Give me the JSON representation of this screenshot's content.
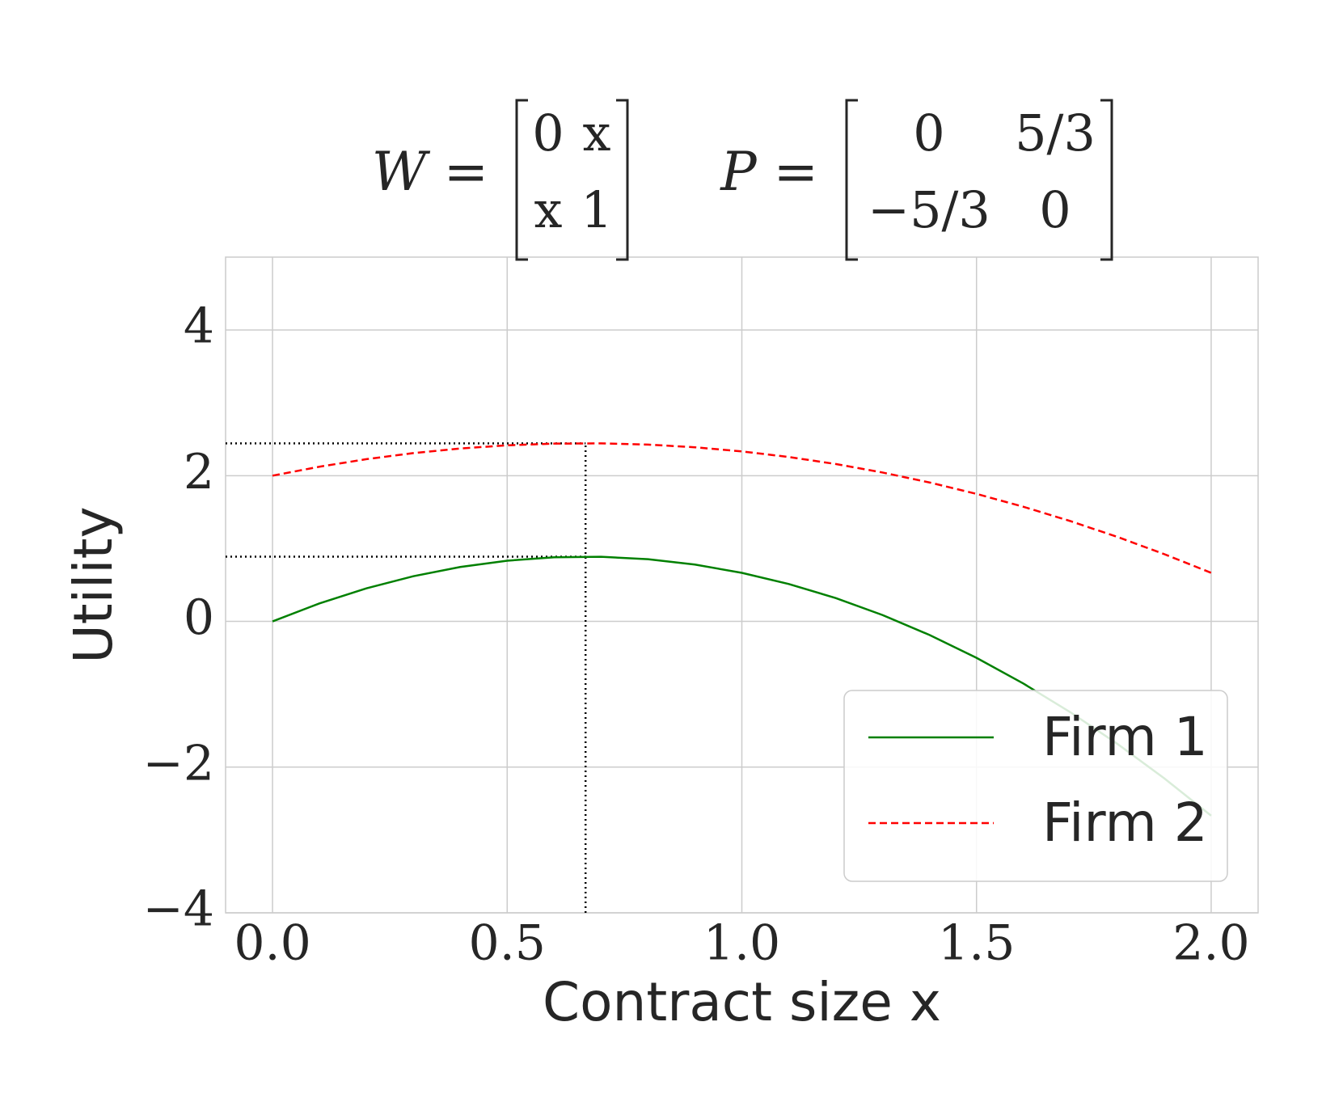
{
  "chart_data": {
    "type": "line",
    "title_parts": [
      {
        "label": "W =",
        "matrix": [
          [
            "0",
            "x"
          ],
          [
            "x",
            "1"
          ]
        ]
      },
      {
        "label": "P =",
        "matrix": [
          [
            "0",
            "5/3"
          ],
          [
            "−5/3",
            "0"
          ]
        ]
      }
    ],
    "xlabel": "Contract size x",
    "ylabel": "Utility",
    "x": [
      0,
      0.1,
      0.2,
      0.3,
      0.4,
      0.5,
      0.6,
      0.7,
      0.8,
      0.9,
      1.0,
      1.1,
      1.2,
      1.3,
      1.4,
      1.5,
      1.6,
      1.7,
      1.8,
      1.9,
      2.0
    ],
    "series": [
      {
        "name": "Firm 1",
        "color": "#008000",
        "dash": "solid",
        "values": [
          0,
          0.2467,
          0.4533,
          0.62,
          0.7467,
          0.8333,
          0.88,
          0.8867,
          0.8533,
          0.78,
          0.6667,
          0.5133,
          0.32,
          0.0867,
          -0.1867,
          -0.5,
          -0.8533,
          -1.2467,
          -1.68,
          -2.1533,
          -2.6667
        ]
      },
      {
        "name": "Firm 2",
        "color": "#ff0000",
        "dash": "dashed",
        "values": [
          2,
          2.1233,
          2.2267,
          2.31,
          2.3733,
          2.4167,
          2.44,
          2.4433,
          2.4267,
          2.39,
          2.3333,
          2.2567,
          2.16,
          2.0433,
          1.9067,
          1.75,
          1.5733,
          1.3767,
          1.16,
          0.9233,
          0.6667
        ]
      }
    ],
    "reference_lines": {
      "x": 0.667,
      "y": [
        0.889,
        2.444
      ],
      "color": "#000000"
    },
    "xlim": [
      -0.1,
      2.1
    ],
    "ylim": [
      -4,
      5
    ],
    "xticks": [
      {
        "value": 0,
        "label": "0.0"
      },
      {
        "value": 0.5,
        "label": "0.5"
      },
      {
        "value": 1,
        "label": "1.0"
      },
      {
        "value": 1.5,
        "label": "1.5"
      },
      {
        "value": 2,
        "label": "2.0"
      }
    ],
    "yticks": [
      {
        "value": -4,
        "label": "−4"
      },
      {
        "value": -2,
        "label": "−2"
      },
      0,
      2,
      4
    ],
    "grid": true,
    "legend": "lower right"
  }
}
